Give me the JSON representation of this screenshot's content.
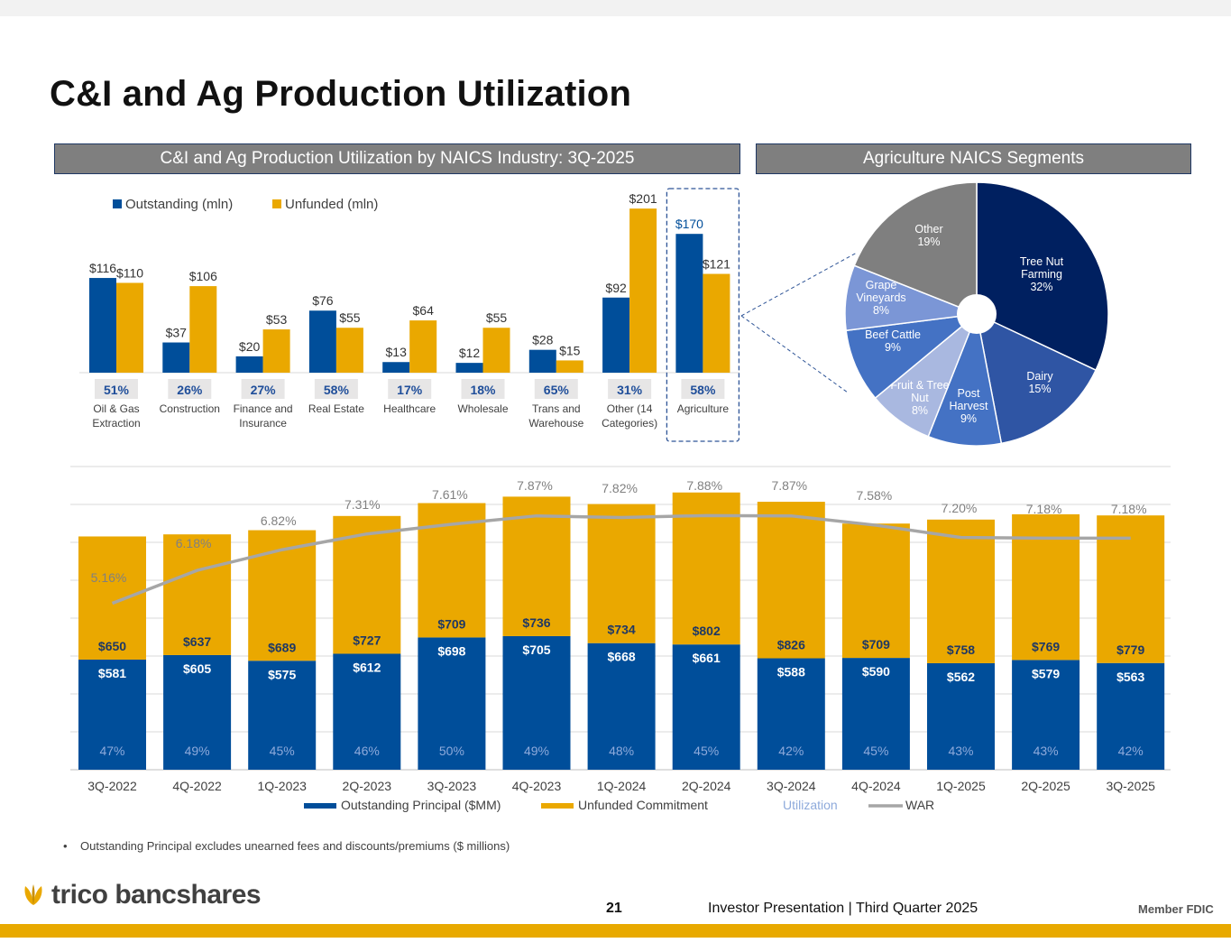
{
  "page": {
    "title": "C&I and Ag Production Utilization",
    "left_header": "C&I and Ag Production Utilization by NAICS Industry: 3Q-2025",
    "right_header": "Agriculture NAICS Segments",
    "footnote": "Outstanding Principal excludes unearned fees and discounts/premiums ($ millions)",
    "footnote_bullet": "•",
    "logo_text": "trico bancshares",
    "page_number": "21",
    "presentation": "Investor Presentation  |  Third Quarter 2025",
    "member": "Member FDIC"
  },
  "colors": {
    "navy": "#004e9a",
    "gold": "#eaa800",
    "gray": "#a6a6a6",
    "util": "#8eaadb",
    "header": "#7f7f7f"
  },
  "chart_data": [
    {
      "type": "bar",
      "categories": [
        "Oil & Gas Extraction",
        "Construction",
        "Finance and Insurance",
        "Real Estate",
        "Healthcare",
        "Wholesale",
        "Trans and Warehouse",
        "Other (14 Categories)",
        "Agriculture"
      ],
      "category_lines": [
        [
          "Oil & Gas",
          "Extraction"
        ],
        [
          "Construction"
        ],
        [
          "Finance and",
          "Insurance"
        ],
        [
          "Real Estate"
        ],
        [
          "Healthcare"
        ],
        [
          "Wholesale"
        ],
        [
          "Trans and",
          "Warehouse"
        ],
        [
          "Other (14",
          "Categories)"
        ],
        [
          "Agriculture"
        ]
      ],
      "series": [
        {
          "name": "Outstanding (mln)",
          "values": [
            116,
            37,
            20,
            76,
            13,
            12,
            28,
            92,
            170
          ],
          "labels": [
            "$116",
            "$37",
            "$20",
            "$76",
            "$13",
            "$12",
            "$28",
            "$92",
            "$170"
          ]
        },
        {
          "name": "Unfunded (mln)",
          "values": [
            110,
            106,
            53,
            55,
            64,
            55,
            15,
            201,
            121
          ],
          "labels": [
            "$110",
            "$106",
            "$53",
            "$55",
            "$64",
            "$55",
            "$15",
            "$201",
            "$121"
          ]
        }
      ],
      "utilization": [
        "51%",
        "26%",
        "27%",
        "58%",
        "17%",
        "18%",
        "65%",
        "31%",
        "58%"
      ],
      "highlight": "Agriculture",
      "ylim": [
        0,
        210
      ]
    },
    {
      "type": "pie",
      "title": "Agriculture NAICS Segments",
      "slices": [
        {
          "label": "Tree Nut Farming",
          "lines": [
            "Tree Nut",
            "Farming",
            "32%"
          ],
          "value": 32
        },
        {
          "label": "Dairy",
          "lines": [
            "Dairy",
            "15%"
          ],
          "value": 15
        },
        {
          "label": "Post Harvest",
          "lines": [
            "Post",
            "Harvest",
            "9%"
          ],
          "value": 9
        },
        {
          "label": "Fruit & Tree Nut",
          "lines": [
            "Fruit & Tree",
            "Nut",
            "8%"
          ],
          "value": 8
        },
        {
          "label": "Beef Cattle",
          "lines": [
            "Beef Cattle",
            "9%"
          ],
          "value": 9
        },
        {
          "label": "Grape Vineyards",
          "lines": [
            "Grape",
            "Vineyards",
            "8%"
          ],
          "value": 8
        },
        {
          "label": "Other",
          "lines": [
            "Other",
            "19%"
          ],
          "value": 19
        }
      ]
    },
    {
      "type": "bar",
      "stacked": true,
      "categories": [
        "3Q-2022",
        "4Q-2022",
        "1Q-2023",
        "2Q-2023",
        "3Q-2023",
        "4Q-2023",
        "1Q-2024",
        "2Q-2024",
        "3Q-2024",
        "4Q-2024",
        "1Q-2025",
        "2Q-2025",
        "3Q-2025"
      ],
      "series": [
        {
          "name": "Outstanding Principal ($MM)",
          "values": [
            581,
            605,
            575,
            612,
            698,
            705,
            668,
            661,
            588,
            590,
            562,
            579,
            563
          ],
          "labels": [
            "$581",
            "$605",
            "$575",
            "$612",
            "$698",
            "$705",
            "$668",
            "$661",
            "$588",
            "$590",
            "$562",
            "$579",
            "$563"
          ]
        },
        {
          "name": "Unfunded Commitment",
          "values": [
            650,
            637,
            689,
            727,
            709,
            736,
            734,
            802,
            826,
            709,
            758,
            769,
            779
          ],
          "labels": [
            "$650",
            "$637",
            "$689",
            "$727",
            "$709",
            "$736",
            "$734",
            "$802",
            "$826",
            "$709",
            "$758",
            "$769",
            "$779"
          ]
        }
      ],
      "utilization": {
        "name": "Utilization",
        "labels": [
          "47%",
          "49%",
          "45%",
          "46%",
          "50%",
          "49%",
          "48%",
          "45%",
          "42%",
          "45%",
          "43%",
          "43%",
          "42%"
        ]
      },
      "war": {
        "name": "WAR",
        "values": [
          5.16,
          6.18,
          6.82,
          7.31,
          7.61,
          7.87,
          7.82,
          7.88,
          7.87,
          7.58,
          7.2,
          7.18,
          7.18
        ],
        "labels": [
          "5.16%",
          "6.18%",
          "6.82%",
          "7.31%",
          "7.61%",
          "7.87%",
          "7.82%",
          "7.88%",
          "7.87%",
          "7.58%",
          "7.20%",
          "7.18%",
          "7.18%"
        ]
      },
      "ylim": [
        0,
        1600
      ],
      "war_ylim": [
        0,
        9.4
      ]
    }
  ]
}
